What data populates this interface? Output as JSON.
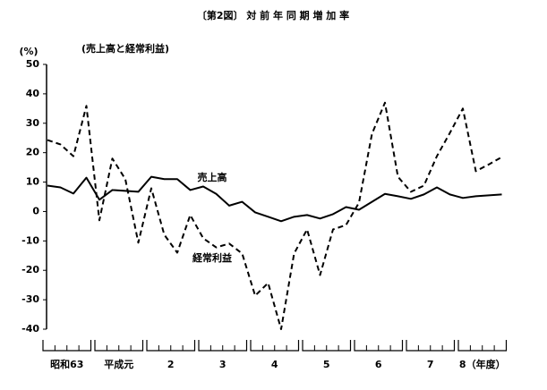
{
  "chart_data": {
    "type": "line",
    "title": "〔第2図〕 対 前 年 同 期 増 加 率",
    "subtitle": "(売上高と経常利益)",
    "y_label": "(%)",
    "categories": [
      null,
      "昭和63",
      null,
      null,
      null,
      "平成元",
      null,
      null,
      null,
      "2",
      null,
      null,
      null,
      "3",
      null,
      null,
      null,
      "4",
      null,
      null,
      null,
      "5",
      null,
      null,
      null,
      "6",
      null,
      null,
      null,
      "7",
      null,
      null,
      null,
      "8（年度）",
      null,
      null
    ],
    "series": [
      {
        "name": "売上高",
        "color": "#000000",
        "dash": false,
        "values": [
          8.8,
          8.2,
          6.1,
          11.5,
          4,
          7.3,
          7,
          6.7,
          11.8,
          11,
          11,
          7.3,
          8.5,
          6,
          2,
          3.3,
          -0.3,
          -1.8,
          -3.3,
          -1.8,
          -1.2,
          -2.4,
          -0.9,
          1.5,
          0.6,
          3.3,
          6,
          5.2,
          4.3,
          5.8,
          8.2,
          5.8,
          4.6,
          5.2,
          5.5,
          5.8
        ]
      },
      {
        "name": "経常利益",
        "color": "#000000",
        "dash": true,
        "values": [
          24.3,
          22.8,
          18.8,
          35.9,
          -3,
          18,
          11,
          -10.6,
          7.9,
          -7.9,
          -14,
          -1.2,
          -9.1,
          -12.2,
          -10.9,
          -14.3,
          -28.6,
          -24.3,
          -40,
          -14.3,
          -6.1,
          -21.6,
          -6.1,
          -4.6,
          3,
          26.4,
          37,
          11.8,
          6.7,
          8.8,
          18.8,
          26.7,
          35,
          13.7,
          16,
          18.5
        ]
      }
    ],
    "ylim": [
      -40,
      50
    ],
    "yticks": [
      -40,
      -30,
      -20,
      -10,
      0,
      10,
      20,
      30,
      40,
      50
    ],
    "grid": false
  }
}
